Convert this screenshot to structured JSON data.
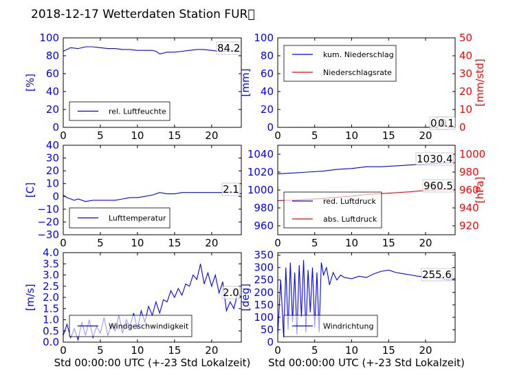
{
  "title": "2018-12-17 Wetterdaten Station FUR\u0000",
  "chart_data": [
    {
      "type": "line",
      "panel": "top-left",
      "xlim": [
        0,
        24
      ],
      "ylim": [
        0,
        100
      ],
      "xticks": [
        "0",
        "5",
        "10",
        "15",
        "20"
      ],
      "yticks": [
        "0",
        "20",
        "40",
        "60",
        "80",
        "100"
      ],
      "ylabel": "[%]",
      "annotation": "84.2",
      "legend": "bottom-left",
      "series": [
        {
          "name": "rel. Luftfeuchte",
          "color": "#0000ff",
          "x": [
            0,
            0.5,
            1,
            2,
            3,
            4,
            5,
            6,
            7,
            8,
            9,
            10,
            11,
            12,
            12.5,
            13,
            13.5,
            14,
            15,
            16,
            17,
            18,
            19,
            20,
            21,
            22,
            23,
            24
          ],
          "y": [
            85,
            87,
            89,
            88,
            90,
            90,
            89,
            88,
            88,
            87,
            87,
            86,
            86,
            86,
            85,
            82,
            83,
            84,
            84,
            85,
            86,
            87,
            87,
            86,
            85,
            85,
            85,
            84.2
          ]
        }
      ]
    },
    {
      "type": "line",
      "panel": "top-right",
      "xlim": [
        0,
        24
      ],
      "ylim": [
        0,
        100
      ],
      "y2lim": [
        0,
        50
      ],
      "xticks": [
        "0",
        "5",
        "10",
        "15",
        "20"
      ],
      "yticks": [
        "0",
        "20",
        "40",
        "60",
        "80",
        "100"
      ],
      "y2ticks": [
        "0",
        "10",
        "20",
        "30",
        "40",
        "50"
      ],
      "ylabel": "[mm]",
      "y2label": "[mm/std]",
      "annotation": "0.0",
      "annotation2": "0.1",
      "legend": "top-left",
      "series": [
        {
          "name": "kum. Niederschlag",
          "color": "#0000ff",
          "axis": "left",
          "x": [
            0,
            24
          ],
          "y": [
            0,
            0.1
          ]
        },
        {
          "name": "Niederschlagsrate",
          "color": "#ff0000",
          "axis": "right",
          "x": [
            0,
            24
          ],
          "y": [
            0,
            0
          ]
        }
      ]
    },
    {
      "type": "line",
      "panel": "middle-left",
      "xlim": [
        0,
        24
      ],
      "ylim": [
        -30,
        40
      ],
      "xticks": [
        "0",
        "5",
        "10",
        "15",
        "20"
      ],
      "yticks": [
        "−30",
        "−20",
        "−10",
        "0",
        "10",
        "20",
        "30",
        "40"
      ],
      "ylabel": "[C]",
      "annotation": "2.1",
      "legend": "bottom-left",
      "series": [
        {
          "name": "Lufttemperatur",
          "color": "#0000ff",
          "x": [
            0,
            0.5,
            1,
            1.5,
            2,
            3,
            4,
            5,
            6,
            7,
            8,
            9,
            10,
            11,
            12,
            13,
            14,
            15,
            16,
            17,
            18,
            19,
            20,
            21,
            22,
            23,
            24
          ],
          "y": [
            1,
            -1,
            -2,
            -3,
            -2,
            -4,
            -3,
            -3,
            -3,
            -3,
            -2,
            -1,
            -1,
            0,
            1,
            3,
            2,
            2,
            3,
            3,
            3,
            3,
            3,
            3,
            3,
            3,
            2.1
          ]
        }
      ]
    },
    {
      "type": "line",
      "panel": "middle-right",
      "xlim": [
        0,
        24
      ],
      "ylim": [
        950,
        1050
      ],
      "y2lim": [
        910,
        1010
      ],
      "xticks": [
        "0",
        "5",
        "10",
        "15",
        "20"
      ],
      "yticks": [
        "960",
        "980",
        "1000",
        "1020",
        "1040"
      ],
      "y2ticks": [
        "920",
        "940",
        "960",
        "980",
        "1000"
      ],
      "ylabel": "",
      "y2label": "[hPa]",
      "annotation": "1030.4",
      "annotation2": "960.5",
      "legend": "bottom-left",
      "series": [
        {
          "name": "red. Luftdruck",
          "color": "#0000ff",
          "axis": "left",
          "x": [
            0,
            2,
            4,
            6,
            8,
            10,
            12,
            14,
            16,
            18,
            20,
            22,
            24
          ],
          "y": [
            1018,
            1019,
            1020,
            1021,
            1023,
            1024,
            1026,
            1026,
            1027,
            1028,
            1029,
            1030,
            1030.4
          ]
        },
        {
          "name": "abs. Luftdruck",
          "color": "#ff0000",
          "axis": "right",
          "x": [
            0,
            2,
            4,
            6,
            8,
            10,
            12,
            14,
            16,
            18,
            20,
            22,
            24
          ],
          "y": [
            948,
            948.5,
            949.5,
            950.5,
            952,
            953,
            955,
            956,
            957,
            958,
            959.5,
            960.3,
            960.5
          ]
        }
      ]
    },
    {
      "type": "line",
      "panel": "bottom-left",
      "xlim": [
        0,
        24
      ],
      "ylim": [
        0,
        4
      ],
      "xticks": [
        "0",
        "5",
        "10",
        "15",
        "20"
      ],
      "yticks": [
        "0.0",
        "0.5",
        "1.0",
        "1.5",
        "2.0",
        "2.5",
        "3.0",
        "3.5",
        "4.0"
      ],
      "ylabel": "[m/s]",
      "xlabel": "Std 00:00:00 UTC (+-23 Std Lokalzeit)",
      "annotation": "2.0",
      "legend": "bottom-left",
      "series": [
        {
          "name": "Windgeschwindigkeit",
          "color": "#0000ff",
          "x": [
            0,
            0.5,
            1,
            1.5,
            2,
            2.5,
            3,
            3.5,
            4,
            4.5,
            5,
            5.5,
            6,
            6.5,
            7,
            7.5,
            8,
            8.5,
            9,
            9.5,
            10,
            10.5,
            11,
            11.5,
            12,
            12.5,
            13,
            13.5,
            14,
            14.5,
            15,
            15.5,
            16,
            16.5,
            17,
            17.5,
            18,
            18.5,
            19,
            19.5,
            20,
            20.5,
            21,
            21.5,
            22,
            22.5,
            23,
            23.5,
            24
          ],
          "y": [
            0.3,
            0.8,
            0.2,
            0.6,
            0.1,
            0.9,
            0.3,
            1.0,
            0.2,
            0.7,
            0.4,
            1.1,
            0.3,
            0.8,
            0.5,
            1.2,
            0.4,
            1.0,
            0.7,
            1.3,
            0.6,
            1.4,
            0.9,
            1.6,
            1.2,
            1.8,
            1.3,
            1.9,
            1.8,
            2.3,
            2.0,
            2.4,
            2.1,
            2.6,
            2.5,
            3.0,
            2.8,
            3.5,
            2.6,
            3.1,
            2.5,
            3.0,
            2.2,
            2.7,
            1.4,
            1.8,
            1.5,
            2.2,
            2.0
          ]
        }
      ]
    },
    {
      "type": "line",
      "panel": "bottom-right",
      "xlim": [
        0,
        24
      ],
      "ylim": [
        0,
        360
      ],
      "xticks": [
        "0",
        "5",
        "10",
        "15",
        "20"
      ],
      "yticks": [
        "0",
        "50",
        "100",
        "150",
        "200",
        "250",
        "300",
        "350"
      ],
      "ylabel": "[deg]",
      "xlabel": "Std 00:00:00 UTC (+-23 Std Lokalzeit)",
      "annotation": "255.6",
      "legend": "bottom-left",
      "series": [
        {
          "name": "Windrichtung",
          "color": "#0000ff",
          "x": [
            0,
            0.4,
            0.8,
            1.1,
            1.4,
            1.7,
            2.0,
            2.3,
            2.6,
            2.9,
            3.2,
            3.5,
            3.8,
            4.1,
            4.4,
            4.7,
            5.0,
            5.3,
            5.6,
            5.9,
            6.2,
            6.6,
            7,
            7.5,
            8,
            8.5,
            9,
            10,
            11,
            12,
            13,
            14,
            15,
            16,
            17,
            18,
            19,
            20,
            21,
            22,
            23,
            24
          ],
          "y": [
            30,
            250,
            20,
            300,
            50,
            320,
            80,
            280,
            30,
            310,
            100,
            330,
            40,
            290,
            120,
            300,
            60,
            280,
            40,
            320,
            270,
            300,
            230,
            280,
            250,
            270,
            260,
            255,
            265,
            260,
            275,
            285,
            290,
            280,
            275,
            270,
            265,
            262,
            260,
            258,
            250,
            255.6
          ]
        }
      ]
    }
  ]
}
